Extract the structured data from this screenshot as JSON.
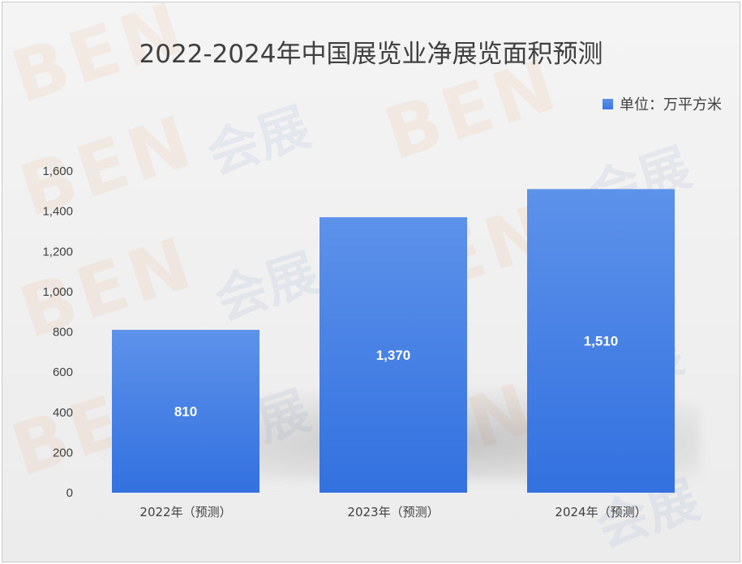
{
  "chart_data": {
    "type": "bar",
    "title": "2022-2024年中国展览业净展览面积预测",
    "categories": [
      "2022年（预测）",
      "2023年（预测）",
      "2024年（预测）"
    ],
    "series": [
      {
        "name": "单位：万平方米",
        "values": [
          810,
          1370,
          1510
        ]
      }
    ],
    "data_labels": [
      "810",
      "1,370",
      "1,510"
    ],
    "yticks": [
      "0",
      "200",
      "400",
      "600",
      "800",
      "1,000",
      "1,200",
      "1,400",
      "1,600"
    ],
    "ylim": [
      0,
      1600
    ],
    "grid": false,
    "legend_position": "top-right",
    "bar_color": "#3b78e4"
  },
  "watermark": {
    "brand": "BEN",
    "cn": "会展"
  }
}
